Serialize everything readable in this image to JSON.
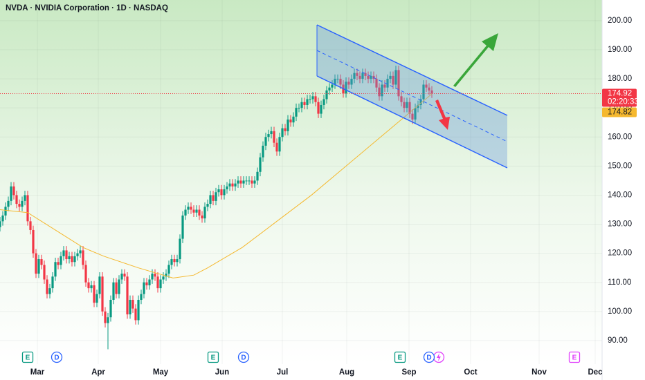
{
  "chart_data": {
    "type": "candlestick",
    "title": "NVDA · NVIDIA Corporation · 1D · NASDAQ",
    "countdown": "02:20:33",
    "up_color": "#089981",
    "down_color": "#f23645",
    "grid": true,
    "xlim": [
      0,
      217.5
    ],
    "ylim": [
      81.9,
      207.1
    ],
    "xticks": [
      {
        "value": 13.5,
        "label": "Mar"
      },
      {
        "value": 35.5,
        "label": "Apr"
      },
      {
        "value": 58,
        "label": "May"
      },
      {
        "value": 80.25,
        "label": "Jun"
      },
      {
        "value": 102,
        "label": "Jul"
      },
      {
        "value": 125.25,
        "label": "Aug"
      },
      {
        "value": 147.75,
        "label": "Sep"
      },
      {
        "value": 170,
        "label": "Oct"
      },
      {
        "value": 194.75,
        "label": "Nov"
      },
      {
        "value": 215,
        "label": "Dec"
      }
    ],
    "yticks": [
      {
        "value": 90,
        "label": "90.00"
      },
      {
        "value": 100,
        "label": "100.00"
      },
      {
        "value": 110,
        "label": "110.00"
      },
      {
        "value": 120,
        "label": "120.00"
      },
      {
        "value": 130,
        "label": "130.00"
      },
      {
        "value": 140,
        "label": "140.00"
      },
      {
        "value": 150,
        "label": "150.00"
      },
      {
        "value": 160,
        "label": "160.00"
      },
      {
        "value": 170,
        "label": "170.00"
      },
      {
        "value": 180,
        "label": "180.00"
      },
      {
        "value": 190,
        "label": "190.00"
      },
      {
        "value": 200,
        "label": "200.00"
      }
    ],
    "open": [
      129,
      131,
      133,
      136,
      138,
      143,
      140,
      137,
      136,
      138,
      140,
      131,
      128,
      120,
      113,
      118,
      116,
      111,
      106,
      108,
      112,
      117,
      116,
      119,
      121,
      118,
      119,
      117,
      119,
      120,
      121,
      116,
      110,
      108,
      109,
      103,
      106,
      112,
      100,
      96,
      98,
      104,
      110,
      106,
      111,
      113,
      112,
      99,
      104,
      101,
      97,
      104,
      106,
      110,
      109,
      111,
      113,
      112,
      108,
      111,
      112,
      113,
      116,
      118,
      117,
      118,
      125,
      133,
      135,
      136,
      135,
      134,
      135,
      133,
      132,
      136,
      137,
      140,
      138,
      141,
      142,
      140,
      142,
      143,
      144,
      143,
      144,
      145,
      144,
      145,
      145,
      145,
      144,
      145,
      148,
      153,
      157,
      160,
      161,
      162,
      158,
      155,
      160,
      163,
      162,
      166,
      165,
      167,
      170,
      170,
      172,
      171,
      173,
      173,
      174,
      172,
      168,
      171,
      173,
      176,
      177,
      178,
      180,
      180,
      178,
      175,
      179,
      178,
      180,
      182,
      181,
      180,
      182,
      181,
      180,
      181,
      180,
      177,
      174,
      178,
      177,
      180,
      181,
      178,
      183,
      174,
      172,
      170,
      172,
      168,
      166,
      170,
      171,
      173,
      178,
      177,
      176
    ],
    "high": [
      132.5,
      134.5,
      137.5,
      139.5,
      144.5,
      144.5,
      141.5,
      138.5,
      139.5,
      141.5,
      141.5,
      132.5,
      129.5,
      121.5,
      119.5,
      119.5,
      117.5,
      112.5,
      109.5,
      113.5,
      118.5,
      118.5,
      120.5,
      122.5,
      122.5,
      120.5,
      120.5,
      120.5,
      121.5,
      122.5,
      122.5,
      117.5,
      111.5,
      110.5,
      110.5,
      107.5,
      113.5,
      113.5,
      101.5,
      99.5,
      105.5,
      111.5,
      111.5,
      112.5,
      114.5,
      114.5,
      113.5,
      105.5,
      105.5,
      102.5,
      105.5,
      107.5,
      111.5,
      111.5,
      112.5,
      114.5,
      114.5,
      113.5,
      112.5,
      113.5,
      114.5,
      117.5,
      119.5,
      119.5,
      119.5,
      126.5,
      134.5,
      136.5,
      137.5,
      137.5,
      136.5,
      136.5,
      136.5,
      134.5,
      137.5,
      138.5,
      141.5,
      141.5,
      142.5,
      143.5,
      143.5,
      143.5,
      144.5,
      145.5,
      145.5,
      145.5,
      146.5,
      146.5,
      146.5,
      146.5,
      146.5,
      146.5,
      146.5,
      149.5,
      154.5,
      158.5,
      161.5,
      162.5,
      163.5,
      163.5,
      159.5,
      161.5,
      164.5,
      164.5,
      167.5,
      167.5,
      168.5,
      171.5,
      171.5,
      173.5,
      173.5,
      174.5,
      174.5,
      175.5,
      175.5,
      173.5,
      172.5,
      174.5,
      177.5,
      178.5,
      179.5,
      181.5,
      181.5,
      181.5,
      179.5,
      180.5,
      180.5,
      181.5,
      183.5,
      183.5,
      182.5,
      183.5,
      183.5,
      182.5,
      182.5,
      182.5,
      181.5,
      178.5,
      179.5,
      179.5,
      181.5,
      182.5,
      182.5,
      184.5,
      184.5,
      175.5,
      173.5,
      173.5,
      173.5,
      169.5,
      171.5,
      172.5,
      174.5,
      179.5,
      179.5,
      178.5,
      177.5
    ],
    "low": [
      127.5,
      129.5,
      131.5,
      134.5,
      136.5,
      138.5,
      135.5,
      134.5,
      134.5,
      136.5,
      129.5,
      126.5,
      118.5,
      111.5,
      111.5,
      114.5,
      109.5,
      104.5,
      104.5,
      106.5,
      110.5,
      114.5,
      114.5,
      117.5,
      116.5,
      116.5,
      115.5,
      115.5,
      117.5,
      118.5,
      114.5,
      108.5,
      106.5,
      106.5,
      101.5,
      101.5,
      104.5,
      98.5,
      94.5,
      87,
      96.5,
      102.5,
      104.5,
      104.5,
      109.5,
      110.5,
      97.5,
      97.5,
      99.5,
      95.5,
      95.5,
      102.5,
      104.5,
      107.5,
      107.5,
      109.5,
      110.5,
      106.5,
      106.5,
      109.5,
      110.5,
      111.5,
      114.5,
      115.5,
      115.5,
      116.5,
      123.5,
      131.5,
      133.5,
      133.5,
      132.5,
      132.5,
      131.5,
      130.5,
      130.5,
      134.5,
      135.5,
      136.5,
      136.5,
      139.5,
      138.5,
      138.5,
      140.5,
      141.5,
      141.5,
      141.5,
      142.5,
      142.5,
      142.5,
      143.5,
      143.5,
      142.5,
      142.5,
      143.5,
      146.5,
      151.5,
      155.5,
      158.5,
      159.5,
      156.5,
      153.5,
      153.5,
      158.5,
      160.5,
      160.5,
      163.5,
      163.5,
      165.5,
      168.5,
      168.5,
      169.5,
      169.5,
      171.5,
      171.5,
      170.5,
      166.5,
      166.5,
      169.5,
      171.5,
      174.5,
      175.5,
      176.5,
      178.5,
      176.5,
      173.5,
      173.5,
      176.5,
      176.5,
      178.5,
      179.5,
      178.5,
      178.5,
      179.5,
      178.5,
      178.5,
      178.5,
      175.5,
      172.5,
      172.5,
      175.5,
      175.5,
      178.5,
      176.5,
      176.5,
      172.5,
      170.5,
      168.5,
      168.5,
      166.5,
      164.5,
      164.5,
      168.5,
      169.5,
      171.5,
      175.5,
      174.5,
      173.42
    ],
    "close": [
      131,
      133,
      136,
      138,
      143,
      140,
      137,
      136,
      138,
      140,
      131,
      128,
      120,
      113,
      118,
      116,
      111,
      106,
      108,
      112,
      117,
      116,
      119,
      121,
      118,
      119,
      117,
      119,
      120,
      121,
      116,
      110,
      108,
      109,
      103,
      106,
      112,
      100,
      96,
      98,
      104,
      110,
      106,
      111,
      113,
      112,
      99,
      104,
      101,
      97,
      104,
      106,
      110,
      109,
      111,
      113,
      112,
      108,
      111,
      112,
      113,
      116,
      118,
      117,
      118,
      125,
      133,
      135,
      136,
      135,
      134,
      135,
      133,
      132,
      136,
      137,
      140,
      138,
      141,
      142,
      140,
      142,
      143,
      144,
      143,
      144,
      145,
      144,
      145,
      145,
      145,
      144,
      145,
      148,
      153,
      157,
      160,
      161,
      162,
      158,
      155,
      160,
      163,
      162,
      166,
      165,
      167,
      170,
      170,
      172,
      171,
      173,
      173,
      174,
      172,
      168,
      171,
      173,
      176,
      177,
      178,
      180,
      180,
      178,
      175,
      179,
      178,
      180,
      182,
      181,
      180,
      182,
      181,
      180,
      181,
      180,
      177,
      174,
      178,
      177,
      180,
      181,
      178,
      183,
      174,
      172,
      170,
      172,
      168,
      166,
      170,
      171,
      173,
      178,
      177,
      176,
      174.92
    ],
    "moving_average": {
      "color": "#f5b82e",
      "x": [
        0,
        10,
        20,
        30,
        37.5,
        50,
        62.5,
        70,
        75,
        87.5,
        100,
        112.5,
        125,
        137.5,
        145,
        150,
        156
      ],
      "values": [
        135,
        134,
        128,
        122,
        119,
        115,
        111.5,
        112.5,
        115,
        122,
        131,
        140,
        150,
        160,
        166,
        170,
        174.82
      ]
    },
    "events": [
      {
        "label": "E",
        "x": 10,
        "color": "#089981"
      },
      {
        "label": "D",
        "x": 20.5,
        "color": "#2962ff"
      },
      {
        "label": "E",
        "x": 77,
        "color": "#089981"
      },
      {
        "label": "D",
        "x": 88,
        "color": "#2962ff"
      },
      {
        "label": "E",
        "x": 144.5,
        "color": "#089981"
      },
      {
        "label": "D",
        "x": 155,
        "color": "#2962ff"
      },
      {
        "label": "E",
        "x": 207.5,
        "color": "#e040fb"
      }
    ]
  }
}
